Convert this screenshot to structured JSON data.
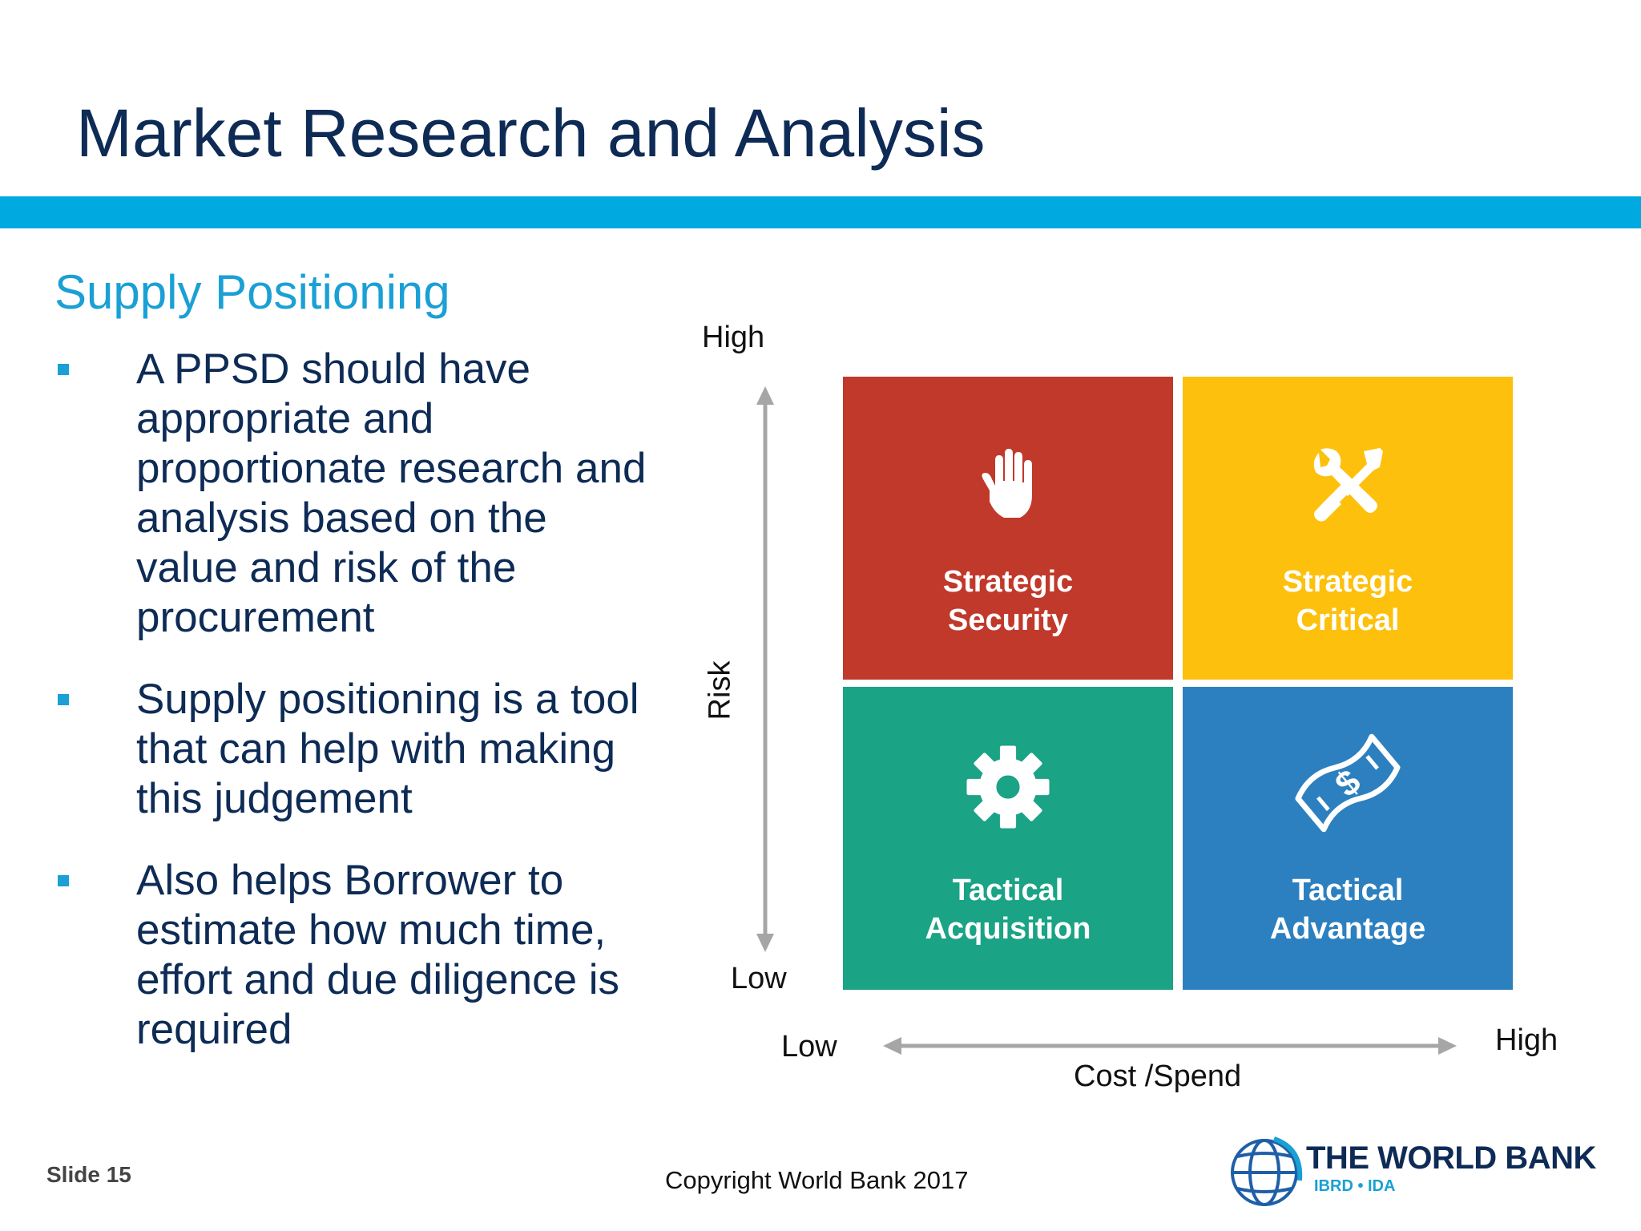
{
  "slide": {
    "title": "Market Research and Analysis",
    "subtitle": "Supply Positioning",
    "bullets": [
      {
        "text": "A PPSD should have appropriate and proportionate research and analysis based on the value and risk of the procurement"
      },
      {
        "text": "Supply positioning is a tool that can help with making this judgement"
      },
      {
        "text": "Also helps Borrower to estimate how much time, effort and due diligence is required"
      }
    ]
  },
  "matrix": {
    "y_axis": {
      "label": "Risk",
      "high": "High",
      "low": "Low"
    },
    "x_axis": {
      "label": "Cost /Spend",
      "low": "Low",
      "high": "High"
    },
    "quadrants": {
      "top_left": {
        "line1": "Strategic",
        "line2": "Security",
        "color": "#c0392b",
        "icon": "hand-icon"
      },
      "top_right": {
        "line1": "Strategic",
        "line2": "Critical",
        "color": "#fdc00c",
        "icon": "tools-icon"
      },
      "bottom_left": {
        "line1": "Tactical",
        "line2": "Acquisition",
        "color": "#1aa385",
        "icon": "gear-icon"
      },
      "bottom_right": {
        "line1": "Tactical",
        "line2": "Advantage",
        "color": "#2d80bf",
        "icon": "money-icon"
      }
    }
  },
  "footer": {
    "slide_number": "Slide 15",
    "copyright": "Copyright World Bank 2017",
    "logo_name": "THE WORLD BANK",
    "logo_sub": "IBRD • IDA"
  },
  "colors": {
    "title": "#0d2b55",
    "accent_bar": "#00a9e0",
    "subtitle": "#1aa0d4"
  }
}
